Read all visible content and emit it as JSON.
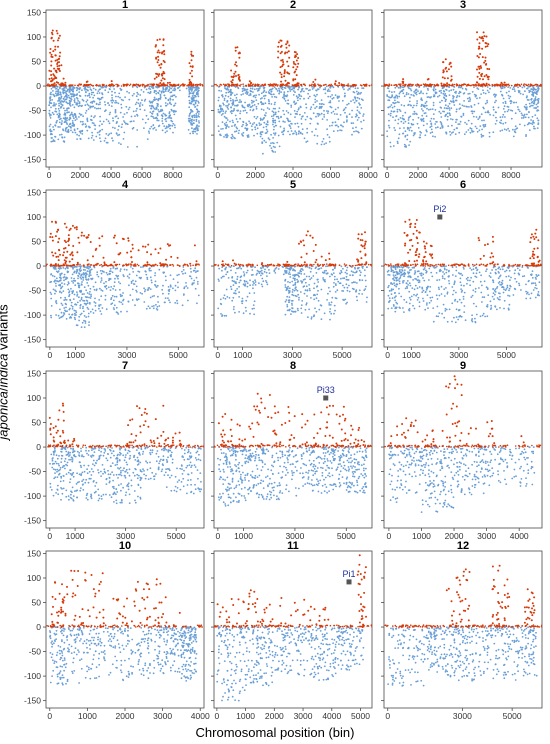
{
  "figure": {
    "ylabel_part1": "japonica",
    "ylabel_sep": "/",
    "ylabel_part2": "indica",
    "ylabel_rest": " variants",
    "xlabel": "Chromosomal position (bin)"
  },
  "colors": {
    "positive": "#d63a0a",
    "negative": "#6a9fd6",
    "gene_marker": "#555555",
    "gene_label": "#1f2f9e"
  },
  "chart_data": [
    {
      "title": "1",
      "type": "scatter",
      "xlim": [
        -200,
        10000
      ],
      "ylim": [
        -165,
        155
      ],
      "xticks": [
        0,
        2000,
        4000,
        6000,
        8000
      ],
      "yticks": [
        -150,
        -100,
        -50,
        0,
        50,
        100,
        150
      ],
      "pos_blocks": [
        [
          0,
          800,
          70,
          120
        ],
        [
          850,
          1100,
          5,
          18
        ],
        [
          2200,
          2500,
          3,
          10
        ],
        [
          4000,
          4100,
          3,
          12
        ],
        [
          6800,
          7500,
          50,
          100
        ],
        [
          7600,
          7900,
          3,
          10
        ],
        [
          9000,
          9300,
          20,
          70
        ]
      ],
      "neg_blocks": [
        [
          0,
          1000,
          70,
          -115
        ],
        [
          1000,
          1700,
          60,
          -95
        ],
        [
          1700,
          3300,
          65,
          -110
        ],
        [
          3300,
          6500,
          70,
          -125
        ],
        [
          6500,
          7300,
          40,
          -90
        ],
        [
          7300,
          8200,
          45,
          -95
        ],
        [
          8200,
          9000,
          2,
          -12
        ],
        [
          9000,
          9700,
          65,
          -100
        ]
      ],
      "genes": []
    },
    {
      "title": "2",
      "type": "scatter",
      "xlim": [
        -200,
        8200
      ],
      "ylim": [
        -165,
        155
      ],
      "xticks": [
        0,
        2000,
        4000,
        6000,
        8000
      ],
      "yticks": [
        -150,
        -100,
        -50,
        0,
        50,
        100,
        150
      ],
      "pos_blocks": [
        [
          700,
          1200,
          30,
          80
        ],
        [
          1500,
          1800,
          5,
          20
        ],
        [
          3200,
          3800,
          50,
          100
        ],
        [
          4000,
          4300,
          30,
          70
        ],
        [
          5000,
          5300,
          5,
          20
        ],
        [
          6200,
          6600,
          3,
          12
        ]
      ],
      "neg_blocks": [
        [
          0,
          1000,
          55,
          -110
        ],
        [
          1000,
          2300,
          60,
          -105
        ],
        [
          2300,
          3300,
          55,
          -140
        ],
        [
          3300,
          4500,
          55,
          -100
        ],
        [
          4500,
          6000,
          45,
          -120
        ],
        [
          6000,
          7800,
          50,
          -100
        ]
      ],
      "genes": []
    },
    {
      "title": "3",
      "type": "scatter",
      "xlim": [
        -200,
        10000
      ],
      "ylim": [
        -165,
        155
      ],
      "xticks": [
        0,
        2000,
        4000,
        6000,
        8000
      ],
      "yticks": [
        -150,
        -100,
        -50,
        0,
        50,
        100,
        150
      ],
      "pos_blocks": [
        [
          700,
          1100,
          5,
          20
        ],
        [
          2500,
          2900,
          5,
          25
        ],
        [
          3500,
          4200,
          30,
          60
        ],
        [
          5800,
          6600,
          60,
          110
        ],
        [
          7300,
          7800,
          3,
          12
        ]
      ],
      "neg_blocks": [
        [
          0,
          1500,
          55,
          -125
        ],
        [
          1500,
          3300,
          55,
          -105
        ],
        [
          3300,
          4800,
          50,
          -100
        ],
        [
          4800,
          7000,
          45,
          -105
        ],
        [
          7000,
          9000,
          45,
          -105
        ],
        [
          9000,
          9800,
          45,
          -90
        ]
      ],
      "genes": []
    },
    {
      "title": "4",
      "type": "scatter",
      "xlim": [
        -150,
        6000
      ],
      "ylim": [
        -165,
        155
      ],
      "xticks": [
        0,
        1000,
        3000,
        5000
      ],
      "yticks": [
        -150,
        -100,
        -50,
        0,
        50,
        100,
        150
      ],
      "pos_blocks": [
        [
          0,
          400,
          30,
          100
        ],
        [
          500,
          1100,
          40,
          90
        ],
        [
          1100,
          2200,
          25,
          70
        ],
        [
          2200,
          3300,
          20,
          65
        ],
        [
          3300,
          4500,
          15,
          55
        ],
        [
          4500,
          5800,
          10,
          45
        ]
      ],
      "neg_blocks": [
        [
          0,
          900,
          60,
          -110
        ],
        [
          900,
          1600,
          70,
          -125
        ],
        [
          1600,
          2800,
          45,
          -100
        ],
        [
          2800,
          4300,
          40,
          -95
        ],
        [
          4300,
          5800,
          30,
          -80
        ]
      ],
      "genes": []
    },
    {
      "title": "5",
      "type": "scatter",
      "xlim": [
        -150,
        6200
      ],
      "ylim": [
        -165,
        155
      ],
      "xticks": [
        0,
        1000,
        3000,
        5000
      ],
      "yticks": [
        -150,
        -100,
        -50,
        0,
        50,
        100,
        150
      ],
      "pos_blocks": [
        [
          0,
          1800,
          5,
          20
        ],
        [
          2300,
          2800,
          3,
          12
        ],
        [
          3200,
          4000,
          20,
          90
        ],
        [
          4000,
          4500,
          5,
          30
        ],
        [
          5600,
          6000,
          25,
          70
        ]
      ],
      "neg_blocks": [
        [
          0,
          1500,
          50,
          -105
        ],
        [
          1500,
          2000,
          15,
          -45
        ],
        [
          2000,
          2700,
          5,
          -20
        ],
        [
          2700,
          3400,
          55,
          -100
        ],
        [
          3400,
          4800,
          50,
          -110
        ],
        [
          4800,
          6000,
          35,
          -80
        ]
      ],
      "genes": []
    },
    {
      "title": "6",
      "type": "scatter",
      "xlim": [
        -150,
        6500
      ],
      "ylim": [
        -165,
        155
      ],
      "xticks": [
        0,
        1000,
        3000,
        5000
      ],
      "yticks": [
        -150,
        -100,
        -50,
        0,
        50,
        100,
        150
      ],
      "pos_blocks": [
        [
          700,
          1400,
          40,
          100
        ],
        [
          1400,
          1900,
          20,
          55
        ],
        [
          3800,
          4500,
          15,
          60
        ],
        [
          6000,
          6400,
          30,
          75
        ]
      ],
      "neg_blocks": [
        [
          0,
          700,
          50,
          -95
        ],
        [
          700,
          1800,
          45,
          -95
        ],
        [
          1800,
          4200,
          70,
          -115
        ],
        [
          4200,
          5200,
          40,
          -90
        ],
        [
          5200,
          6400,
          25,
          -70
        ]
      ],
      "genes": [
        {
          "label": "Pi2",
          "x": 2200,
          "y": 100
        }
      ]
    },
    {
      "title": "7",
      "type": "scatter",
      "xlim": [
        -150,
        6100
      ],
      "ylim": [
        -165,
        155
      ],
      "xticks": [
        0,
        1000,
        3000,
        5000
      ],
      "yticks": [
        -150,
        -100,
        -50,
        0,
        50,
        100,
        150
      ],
      "pos_blocks": [
        [
          0,
          600,
          30,
          90
        ],
        [
          700,
          1000,
          5,
          20
        ],
        [
          3000,
          4500,
          35,
          90
        ],
        [
          4500,
          5200,
          15,
          40
        ]
      ],
      "neg_blocks": [
        [
          0,
          1000,
          55,
          -110
        ],
        [
          1000,
          2500,
          60,
          -110
        ],
        [
          2500,
          3600,
          55,
          -115
        ],
        [
          3600,
          4600,
          25,
          -75
        ],
        [
          4600,
          6000,
          45,
          -95
        ]
      ],
      "genes": []
    },
    {
      "title": "8",
      "type": "scatter",
      "xlim": [
        -150,
        6000
      ],
      "ylim": [
        -165,
        155
      ],
      "xticks": [
        0,
        1000,
        3000,
        5000
      ],
      "yticks": [
        -150,
        -100,
        -50,
        0,
        50,
        100,
        150
      ],
      "pos_blocks": [
        [
          0,
          1000,
          25,
          70
        ],
        [
          1000,
          2500,
          35,
          110
        ],
        [
          2500,
          4000,
          25,
          85
        ],
        [
          4000,
          5000,
          30,
          85
        ],
        [
          5000,
          5700,
          15,
          45
        ]
      ],
      "neg_blocks": [
        [
          0,
          1200,
          65,
          -120
        ],
        [
          1200,
          2500,
          55,
          -110
        ],
        [
          2500,
          4000,
          50,
          -100
        ],
        [
          4000,
          5000,
          45,
          -95
        ],
        [
          5000,
          5800,
          45,
          -95
        ]
      ],
      "genes": [
        {
          "label": "Pi33",
          "x": 4200,
          "y": 100
        }
      ]
    },
    {
      "title": "9",
      "type": "scatter",
      "xlim": [
        -150,
        4700
      ],
      "ylim": [
        -165,
        155
      ],
      "xticks": [
        0,
        1000,
        2000,
        3000,
        4000
      ],
      "yticks": [
        -150,
        -100,
        -50,
        0,
        50,
        100,
        150
      ],
      "pos_blocks": [
        [
          0,
          900,
          20,
          60
        ],
        [
          900,
          1700,
          15,
          50
        ],
        [
          1700,
          2300,
          25,
          145
        ],
        [
          2300,
          3200,
          15,
          55
        ],
        [
          3200,
          4300,
          5,
          25
        ]
      ],
      "neg_blocks": [
        [
          0,
          1000,
          45,
          -115
        ],
        [
          1000,
          2000,
          60,
          -135
        ],
        [
          2000,
          3000,
          45,
          -100
        ],
        [
          3000,
          4500,
          40,
          -80
        ]
      ],
      "genes": []
    },
    {
      "title": "10",
      "type": "scatter",
      "xlim": [
        -100,
        4100
      ],
      "ylim": [
        -165,
        155
      ],
      "xticks": [
        0,
        1000,
        2000,
        3000,
        4000
      ],
      "yticks": [
        -150,
        -100,
        -50,
        0,
        50,
        100,
        150
      ],
      "pos_blocks": [
        [
          0,
          400,
          30,
          95
        ],
        [
          400,
          1500,
          40,
          115
        ],
        [
          1500,
          2200,
          15,
          60
        ],
        [
          2200,
          3100,
          35,
          100
        ],
        [
          3100,
          3500,
          5,
          30
        ]
      ],
      "neg_blocks": [
        [
          0,
          800,
          55,
          -120
        ],
        [
          800,
          1800,
          45,
          -105
        ],
        [
          1800,
          2800,
          45,
          -110
        ],
        [
          2800,
          3500,
          45,
          -95
        ],
        [
          3500,
          3900,
          55,
          -110
        ]
      ],
      "genes": []
    },
    {
      "title": "11",
      "type": "scatter",
      "xlim": [
        -100,
        5400
      ],
      "ylim": [
        -165,
        155
      ],
      "xticks": [
        0,
        1000,
        2000,
        3000,
        4000,
        5000
      ],
      "yticks": [
        -150,
        -100,
        -50,
        0,
        50,
        100,
        150
      ],
      "pos_blocks": [
        [
          0,
          900,
          15,
          60
        ],
        [
          900,
          1800,
          25,
          75
        ],
        [
          1800,
          3300,
          20,
          75
        ],
        [
          3300,
          4000,
          10,
          45
        ],
        [
          4900,
          5200,
          30,
          150
        ]
      ],
      "neg_blocks": [
        [
          0,
          1000,
          50,
          -150
        ],
        [
          1000,
          2000,
          50,
          -120
        ],
        [
          2000,
          3200,
          45,
          -100
        ],
        [
          3200,
          4200,
          45,
          -110
        ],
        [
          4200,
          5100,
          40,
          -90
        ]
      ],
      "genes": [
        {
          "label": "Pi1",
          "x": 4600,
          "y": 92
        }
      ]
    },
    {
      "title": "12",
      "type": "scatter",
      "xlim": [
        -150,
        6200
      ],
      "ylim": [
        -165,
        155
      ],
      "xticks": [
        0,
        3000,
        5000
      ],
      "yticks": [
        -150,
        -100,
        -50,
        0,
        50,
        100,
        150
      ],
      "pos_blocks": [
        [
          0,
          2200,
          2,
          8
        ],
        [
          2300,
          3300,
          35,
          120
        ],
        [
          4200,
          4900,
          40,
          125
        ],
        [
          5500,
          5900,
          25,
          80
        ]
      ],
      "neg_blocks": [
        [
          0,
          1500,
          45,
          -120
        ],
        [
          1500,
          2400,
          40,
          -95
        ],
        [
          2400,
          3600,
          50,
          -110
        ],
        [
          3600,
          5000,
          45,
          -105
        ],
        [
          5000,
          6000,
          40,
          -110
        ]
      ],
      "genes": []
    }
  ]
}
